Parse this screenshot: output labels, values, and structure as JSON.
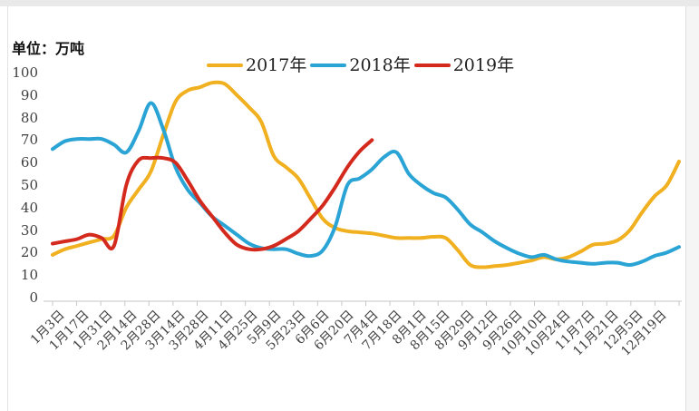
{
  "unit_label": "单位：万吨",
  "chart_data": {
    "type": "line",
    "title": "",
    "ylabel": "万吨",
    "ylim": [
      0,
      100
    ],
    "y_ticks": [
      0,
      10,
      20,
      30,
      40,
      50,
      60,
      70,
      80,
      90,
      100
    ],
    "grid": false,
    "legend_position": "top",
    "x_labels": [
      "1月3日",
      "1月17日",
      "1月31日",
      "2月14日",
      "2月28日",
      "3月14日",
      "3月28日",
      "4月11日",
      "4月25日",
      "5月9日",
      "5月23日",
      "6月6日",
      "6月20日",
      "7月4日",
      "7月18日",
      "8月1日",
      "8月15日",
      "8月29日",
      "9月12日",
      "9月26日",
      "10月10日",
      "10月24日",
      "11月7日",
      "11月21日",
      "12月5日",
      "12月19日"
    ],
    "x_label_every_n_points": 2,
    "series": [
      {
        "name": "2017年",
        "color": "#f0b01f",
        "values": [
          19,
          21.5,
          23,
          24.5,
          26,
          27.5,
          40,
          48,
          56,
          72,
          87,
          92,
          93.5,
          95.5,
          95,
          90,
          84.5,
          78,
          63,
          58,
          53,
          44,
          35,
          31,
          29.5,
          29,
          28.5,
          27.5,
          26.5,
          26.5,
          26.5,
          27,
          26.5,
          21,
          14.5,
          13.5,
          14,
          14.5,
          15.5,
          16.5,
          18,
          17,
          18,
          20.5,
          23.5,
          24,
          25.5,
          30,
          38,
          45,
          50,
          60.5
        ]
      },
      {
        "name": "2018年",
        "color": "#2aa3d5",
        "values": [
          66,
          69.5,
          70.5,
          70.5,
          70.5,
          68,
          64.5,
          74,
          86.5,
          75,
          58,
          48,
          42,
          36,
          32,
          28,
          24,
          22,
          21.5,
          21.5,
          19.5,
          18.5,
          21,
          31.5,
          50,
          53,
          57,
          62.5,
          64.5,
          55,
          50,
          46.5,
          44.5,
          39,
          32.5,
          29,
          25,
          22,
          19.5,
          18,
          19,
          17,
          16,
          15.5,
          15,
          15.5,
          15.5,
          14.5,
          16,
          18.5,
          20,
          22.5
        ]
      },
      {
        "name": "2019年",
        "color": "#d42a1e",
        "values": [
          24,
          25,
          26,
          28,
          26.5,
          23,
          50,
          61,
          62,
          62,
          60,
          52,
          43,
          36,
          29,
          23.5,
          21.5,
          21.5,
          23,
          26,
          29.5,
          35,
          41,
          49,
          58,
          65,
          70
        ]
      }
    ]
  }
}
